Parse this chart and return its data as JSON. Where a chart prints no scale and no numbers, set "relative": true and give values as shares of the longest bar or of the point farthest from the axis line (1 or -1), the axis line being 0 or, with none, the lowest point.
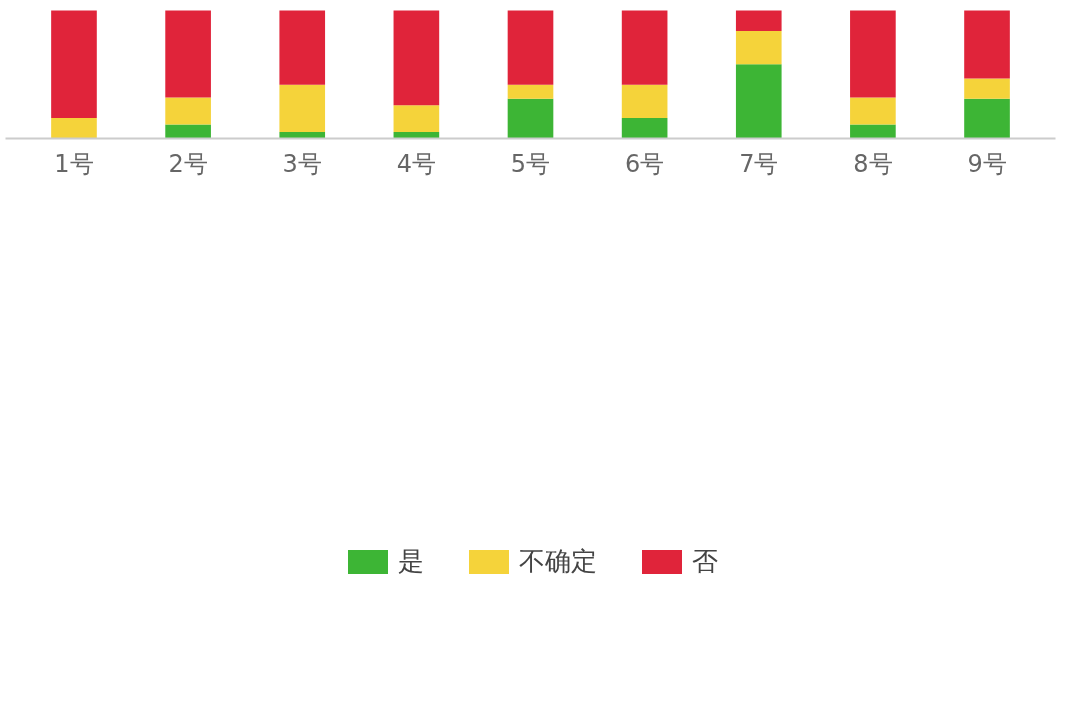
{
  "chart_data": {
    "type": "bar",
    "stacked": true,
    "relative": true,
    "legend": "bottom",
    "categories": [
      "1号",
      "2号",
      "3号",
      "4号",
      "5号",
      "6号",
      "7号",
      "8号",
      "9号"
    ],
    "series": [
      {
        "name": "是",
        "color": "#3db535",
        "values": [
          0,
          0.11,
          0.05,
          0.05,
          0.31,
          0.16,
          0.58,
          0.11,
          0.31
        ]
      },
      {
        "name": "不确定",
        "color": "#f5d33a",
        "values": [
          0.16,
          0.21,
          0.37,
          0.21,
          0.11,
          0.26,
          0.26,
          0.21,
          0.16
        ]
      },
      {
        "name": "否",
        "color": "#e0243a",
        "values": [
          0.84,
          0.68,
          0.58,
          0.74,
          0.58,
          0.58,
          0.16,
          0.68,
          0.53
        ]
      }
    ]
  }
}
